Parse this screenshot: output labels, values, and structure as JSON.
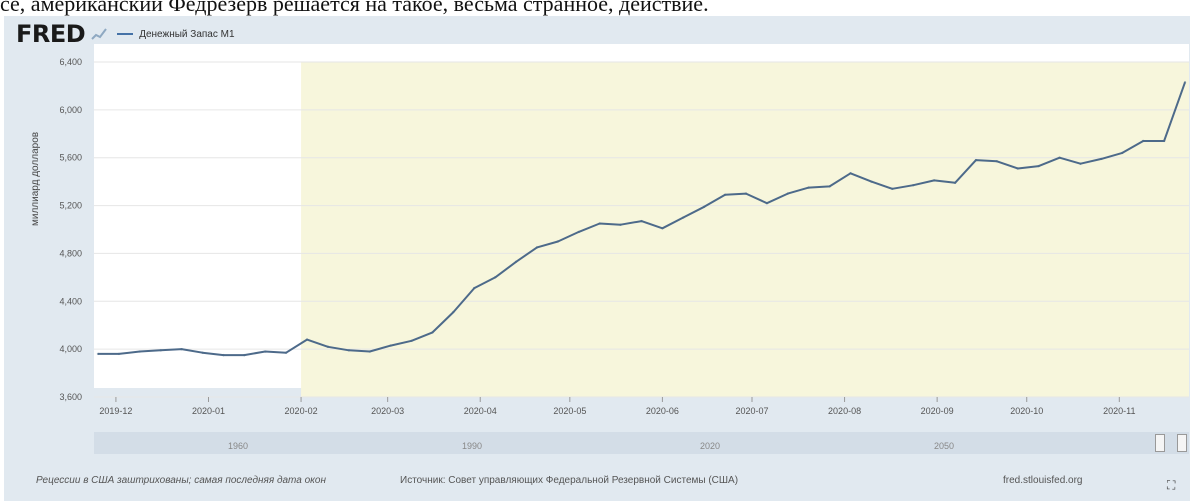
{
  "top_text": "се, американский Федрезерв решается на такое, весьма странное, действие.",
  "header": {
    "logo": "FRED",
    "logo_icon": "chart-line-icon",
    "series_name": "Денежный Запас M1"
  },
  "chart_data": {
    "type": "line",
    "ylabel": "миллиард долларов",
    "ylim": [
      3600,
      6400
    ],
    "yticks": [
      "3,600",
      "4,000",
      "4,400",
      "4,800",
      "5,200",
      "5,600",
      "6,000",
      "6,400"
    ],
    "x_tick_labels": [
      "2019-12",
      "2020-01",
      "2020-02",
      "2020-03",
      "2020-04",
      "2020-05",
      "2020-06",
      "2020-07",
      "2020-08",
      "2020-09",
      "2020-10",
      "2020-11"
    ],
    "x": [
      "2019-11-25",
      "2019-12-02",
      "2019-12-09",
      "2019-12-16",
      "2019-12-23",
      "2019-12-30",
      "2020-01-06",
      "2020-01-13",
      "2020-01-20",
      "2020-01-27",
      "2020-02-03",
      "2020-02-10",
      "2020-02-17",
      "2020-02-24",
      "2020-03-02",
      "2020-03-09",
      "2020-03-16",
      "2020-03-23",
      "2020-03-30",
      "2020-04-06",
      "2020-04-13",
      "2020-04-20",
      "2020-04-27",
      "2020-05-04",
      "2020-05-11",
      "2020-05-18",
      "2020-05-25",
      "2020-06-01",
      "2020-06-08",
      "2020-06-15",
      "2020-06-22",
      "2020-06-29",
      "2020-07-06",
      "2020-07-13",
      "2020-07-20",
      "2020-07-27",
      "2020-08-03",
      "2020-08-10",
      "2020-08-17",
      "2020-08-24",
      "2020-08-31",
      "2020-09-07",
      "2020-09-14",
      "2020-09-21",
      "2020-09-28",
      "2020-10-05",
      "2020-10-12",
      "2020-10-19",
      "2020-10-26",
      "2020-11-02",
      "2020-11-09",
      "2020-11-16",
      "2020-11-23"
    ],
    "series": [
      {
        "name": "Денежный Запас M1",
        "values": [
          3960,
          3960,
          3980,
          3990,
          4000,
          3970,
          3950,
          3950,
          3980,
          3970,
          4080,
          4020,
          3990,
          3980,
          4030,
          4070,
          4140,
          4310,
          4510,
          4600,
          4730,
          4850,
          4900,
          4980,
          5050,
          5040,
          5070,
          5010,
          5100,
          5190,
          5290,
          5300,
          5220,
          5300,
          5350,
          5360,
          5470,
          5400,
          5340,
          5370,
          5410,
          5390,
          5580,
          5570,
          5510,
          5530,
          5600,
          5550,
          5590,
          5640,
          5740,
          5740,
          6230
        ]
      }
    ],
    "recession": {
      "start": "2020-02-01",
      "end": "2020-11-30",
      "color": "#f7f6dc"
    },
    "line_color": "#4d6a8a",
    "grid": true
  },
  "navigator": {
    "labels": [
      "1960",
      "1990",
      "2020",
      "2050"
    ]
  },
  "footer": {
    "note": "Рецессии в США заштрихованы; самая последняя дата окон",
    "source": "Источник: Совет управляющих Федеральной Резервной Системы (США)",
    "site": "fred.stlouisfed.org",
    "fullscreen_icon": "fullscreen-icon"
  }
}
